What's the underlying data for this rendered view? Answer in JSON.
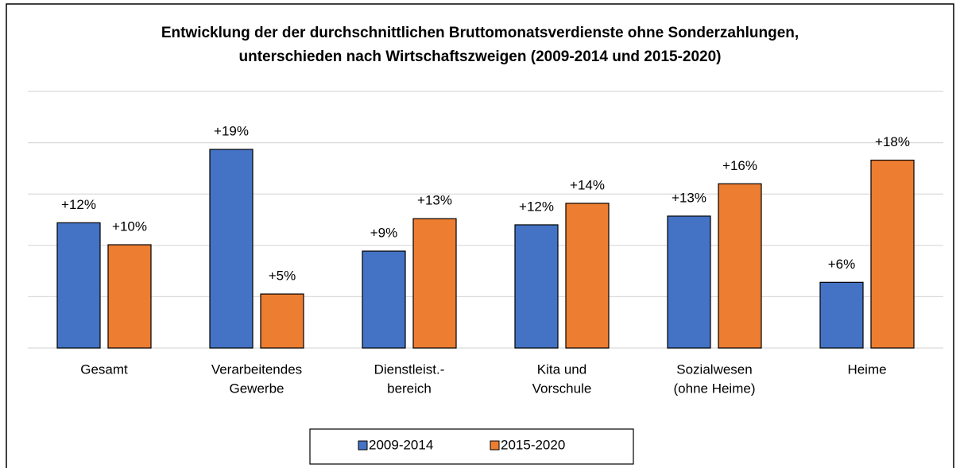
{
  "chart_data": {
    "type": "bar",
    "title": [
      "Entwicklung der der durchschnittlichen Bruttomonatsverdienste ohne Sonderzahlungen,",
      "unterschieden nach Wirtschaftszweigen (2009-2014 und 2015-2020)"
    ],
    "categories": [
      [
        "Gesamt"
      ],
      [
        "Verarbeitendes",
        "Gewerbe"
      ],
      [
        "Dienstleist.-",
        "bereich"
      ],
      [
        "Kita und",
        "Vorschule"
      ],
      [
        "Sozialwesen",
        "(ohne Heime)"
      ],
      [
        "Heime"
      ]
    ],
    "series": [
      {
        "name": "2009-2014",
        "color": "#4472c4",
        "values": [
          12.2,
          19.35,
          9.44,
          12.0,
          12.85,
          6.4
        ],
        "value_labels": [
          "+12%",
          "+19%",
          "+9%",
          "+12%",
          "+13%",
          "+6%"
        ]
      },
      {
        "name": "2015-2020",
        "color": "#ed7d31",
        "values": [
          10.06,
          5.26,
          12.6,
          14.1,
          16.0,
          18.3
        ],
        "value_labels": [
          "+10%",
          "+5%",
          "+13%",
          "+14%",
          "+16%",
          "+18%"
        ]
      }
    ],
    "ylim": [
      0,
      25
    ],
    "yticks": [
      0,
      5,
      10,
      15,
      20,
      25
    ],
    "grid": true,
    "legend": "bottom"
  }
}
